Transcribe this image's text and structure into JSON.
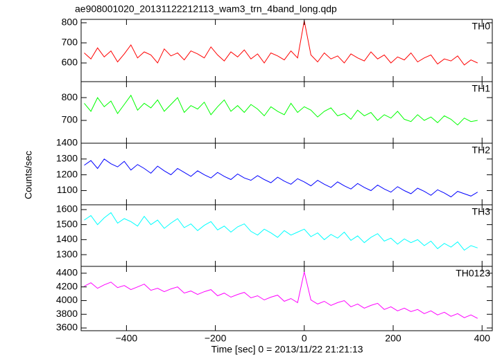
{
  "chart_data": {
    "type": "line",
    "title": "ae908001020_20131122212113_wam3_trn_4band_long.qdp",
    "xlabel": "Time [sec] 0 = 2013/11/22 21:21:13",
    "ylabel": "Counts/sec",
    "xlim": [
      -502,
      423
    ],
    "xticks": [
      {
        "value": -400,
        "label": "−400"
      },
      {
        "value": -200,
        "label": "−200"
      },
      0,
      200,
      400
    ],
    "x": [
      -495,
      -480,
      -465,
      -450,
      -435,
      -420,
      -405,
      -390,
      -375,
      -360,
      -345,
      -330,
      -315,
      -300,
      -285,
      -270,
      -255,
      -240,
      -225,
      -210,
      -195,
      -180,
      -165,
      -150,
      -135,
      -120,
      -105,
      -90,
      -75,
      -60,
      -45,
      -30,
      -15,
      0,
      15,
      30,
      45,
      60,
      75,
      90,
      105,
      120,
      135,
      150,
      165,
      180,
      195,
      210,
      225,
      240,
      255,
      270,
      285,
      300,
      315,
      330,
      345,
      360,
      375,
      390
    ],
    "series": [
      {
        "name": "TH0",
        "color": "#ff0000",
        "ylim": [
          507,
          817
        ],
        "yticks": [
          600,
          700,
          800
        ],
        "values": [
          650,
          620,
          675,
          630,
          660,
          605,
          645,
          690,
          625,
          655,
          640,
          600,
          670,
          635,
          650,
          615,
          660,
          645,
          625,
          680,
          640,
          610,
          655,
          630,
          665,
          620,
          645,
          600,
          650,
          635,
          615,
          660,
          625,
          810,
          640,
          605,
          650,
          620,
          635,
          600,
          645,
          625,
          610,
          655,
          620,
          640,
          600,
          630,
          615,
          650,
          605,
          625,
          640,
          595,
          620,
          610,
          635,
          590,
          615,
          600
        ]
      },
      {
        "name": "TH1",
        "color": "#00ff00",
        "ylim": [
          600,
          870
        ],
        "yticks": [
          700,
          800
        ],
        "values": [
          775,
          740,
          800,
          760,
          785,
          730,
          770,
          810,
          745,
          775,
          755,
          790,
          740,
          770,
          800,
          735,
          765,
          750,
          780,
          725,
          760,
          790,
          740,
          765,
          735,
          770,
          750,
          720,
          760,
          740,
          725,
          775,
          735,
          760,
          745,
          715,
          740,
          755,
          720,
          730,
          705,
          745,
          720,
          735,
          700,
          725,
          710,
          740,
          705,
          695,
          725,
          700,
          715,
          690,
          720,
          705,
          680,
          710,
          695,
          700
        ]
      },
      {
        "name": "TH2",
        "color": "#0000ff",
        "ylim": [
          1010,
          1400
        ],
        "yticks": [
          1100,
          1200,
          1300,
          1400
        ],
        "values": [
          1260,
          1290,
          1240,
          1300,
          1270,
          1250,
          1285,
          1230,
          1265,
          1240,
          1210,
          1255,
          1225,
          1200,
          1240,
          1215,
          1190,
          1225,
          1200,
          1180,
          1215,
          1190,
          1170,
          1205,
          1180,
          1165,
          1195,
          1170,
          1150,
          1185,
          1160,
          1140,
          1175,
          1155,
          1130,
          1165,
          1140,
          1120,
          1155,
          1130,
          1110,
          1145,
          1120,
          1100,
          1135,
          1110,
          1090,
          1125,
          1100,
          1080,
          1115,
          1095,
          1070,
          1105,
          1085,
          1060,
          1095,
          1080,
          1065,
          1090
        ]
      },
      {
        "name": "TH3",
        "color": "#00ffff",
        "ylim": [
          1222,
          1632
        ],
        "yticks": [
          1300,
          1400,
          1500,
          1600
        ],
        "values": [
          1530,
          1560,
          1500,
          1545,
          1580,
          1510,
          1540,
          1520,
          1490,
          1555,
          1500,
          1530,
          1475,
          1510,
          1540,
          1480,
          1505,
          1460,
          1495,
          1520,
          1465,
          1490,
          1450,
          1485,
          1505,
          1455,
          1430,
          1470,
          1445,
          1415,
          1460,
          1430,
          1450,
          1470,
          1420,
          1445,
          1400,
          1435,
          1410,
          1450,
          1395,
          1425,
          1380,
          1415,
          1440,
          1390,
          1410,
          1370,
          1405,
          1380,
          1400,
          1360,
          1390,
          1340,
          1375,
          1350,
          1385,
          1330,
          1360,
          1345
        ]
      },
      {
        "name": "TH0123",
        "color": "#ff00ff",
        "ylim": [
          3560,
          4500
        ],
        "yticks": [
          3600,
          3800,
          4000,
          4200,
          4400
        ],
        "values": [
          4210,
          4260,
          4180,
          4230,
          4270,
          4190,
          4220,
          4160,
          4200,
          4240,
          4150,
          4180,
          4130,
          4170,
          4200,
          4110,
          4140,
          4090,
          4130,
          4160,
          4070,
          4110,
          4050,
          4090,
          4120,
          4040,
          4070,
          4010,
          4050,
          4080,
          3990,
          4030,
          3970,
          4420,
          4010,
          3950,
          3990,
          3930,
          3970,
          4000,
          3910,
          3950,
          3890,
          3930,
          3960,
          3870,
          3910,
          3850,
          3890,
          3840,
          3870,
          3810,
          3850,
          3790,
          3830,
          3770,
          3810,
          3750,
          3790,
          3740
        ]
      }
    ]
  }
}
